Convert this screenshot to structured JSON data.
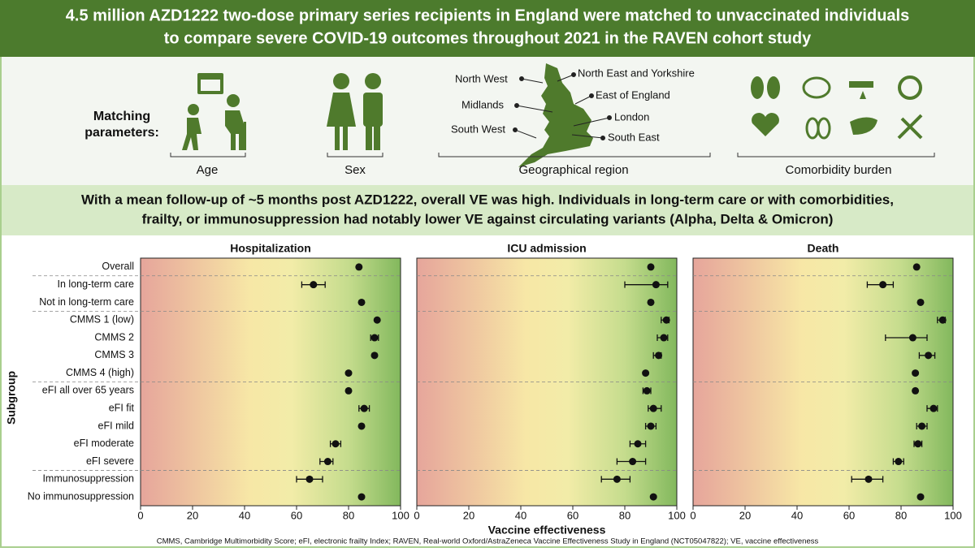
{
  "header": {
    "title": [
      "4.5 million AZD1222 two-dose primary series recipients in England were matched to unvaccinated individuals",
      "to compare severe COVID-19 outcomes throughout 2021 in the RAVEN cohort study"
    ]
  },
  "matching": {
    "label": [
      "Matching",
      "parameters:"
    ],
    "items": [
      "Age",
      "Sex",
      "Geographical region",
      "Comorbidity burden"
    ],
    "regions": [
      "North West",
      "North East and Yorkshire",
      "East of England",
      "Midlands",
      "London",
      "South West",
      "South East"
    ]
  },
  "finding": [
    "With a mean follow-up of ~5 months post AZD1222, overall VE was high. Individuals in long-term care or with comorbidities,",
    "frailty, or immunosuppression had notably lower VE against circulating variants (Alpha, Delta & Omicron)"
  ],
  "chart_data": [
    {
      "type": "errorbar",
      "title": "Hospitalization",
      "ylabel": "Subgroup",
      "categories": [
        "Overall",
        "In long-term care",
        "Not in long-term care",
        "CMMS 1 (low)",
        "CMMS 2",
        "CMMS 3",
        "CMMS 4 (high)",
        "eFI all over 65 years",
        "eFI fit",
        "eFI mild",
        "eFI moderate",
        "eFI severe",
        "Immunosuppression",
        "No immunosuppression"
      ],
      "values": [
        84,
        66.5,
        85,
        91,
        90,
        90,
        80,
        80,
        86,
        85,
        75,
        72,
        65,
        85
      ],
      "lower": [
        null,
        62,
        null,
        null,
        88.5,
        null,
        null,
        null,
        84,
        null,
        73,
        69,
        60,
        null
      ],
      "upper": [
        null,
        71,
        null,
        null,
        91.5,
        null,
        null,
        null,
        88,
        null,
        77,
        74,
        70,
        null
      ],
      "xlim": [
        0,
        100
      ],
      "xticks": [
        0,
        20,
        40,
        60,
        80,
        100
      ]
    },
    {
      "type": "errorbar",
      "title": "ICU admission",
      "xlabel": "Vaccine effectiveness",
      "values": [
        90,
        92,
        90,
        96,
        95,
        93,
        88,
        88.5,
        91,
        90,
        85,
        83,
        77,
        91
      ],
      "lower": [
        null,
        80,
        null,
        94,
        92.5,
        91,
        null,
        87,
        89,
        88,
        82,
        77,
        71,
        null
      ],
      "upper": [
        null,
        96.5,
        null,
        97,
        96.5,
        94,
        null,
        90,
        94,
        92,
        88,
        88,
        82,
        null
      ],
      "xlim": [
        0,
        100
      ],
      "xticks": [
        0,
        20,
        40,
        60,
        80,
        100
      ]
    },
    {
      "type": "errorbar",
      "title": "Death",
      "values": [
        86,
        73,
        87.5,
        96,
        84.5,
        90.5,
        85.5,
        85.5,
        92.5,
        88,
        86.5,
        79,
        67.5,
        87.5
      ],
      "lower": [
        null,
        67,
        null,
        94,
        74,
        87,
        null,
        null,
        90,
        86,
        85,
        77,
        61,
        null
      ],
      "upper": [
        null,
        77,
        null,
        97,
        90,
        93,
        null,
        null,
        94,
        90,
        88,
        81,
        73,
        null
      ],
      "xlim": [
        0,
        100
      ],
      "xticks": [
        0,
        20,
        40,
        60,
        80,
        100
      ]
    }
  ],
  "footnote": "CMMS, Cambridge Multimorbidity Score; eFI, electronic frailty Index; RAVEN, Real-world Oxford/AstraZeneca Vaccine Effectiveness Study in England (NCT05047822); VE, vaccine effectiveness"
}
